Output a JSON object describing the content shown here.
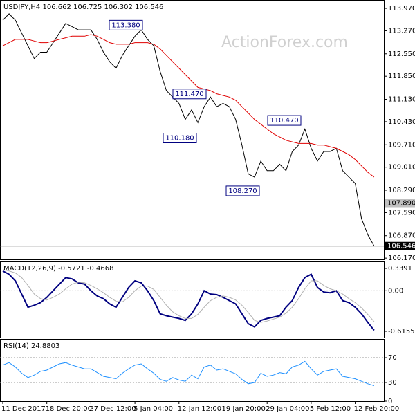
{
  "watermark": "ActionForex.com",
  "chart_data": [
    {
      "type": "line",
      "title": "USDJPY,H4  106.662 106.725 106.302 106.546",
      "categories": [
        "11 Dec 2017",
        null,
        null,
        null,
        null,
        null,
        null,
        "18 Dec 20:00",
        null,
        null,
        null,
        null,
        null,
        null,
        "27 Dec 12:00",
        null,
        null,
        null,
        null,
        null,
        null,
        "5 Jan 04:00",
        null,
        null,
        null,
        null,
        null,
        null,
        "12 Jan 12:00",
        null,
        null,
        null,
        null,
        null,
        null,
        "19 Jan 20:00",
        null,
        null,
        null,
        null,
        null,
        null,
        "29 Jan 04:00",
        null,
        null,
        null,
        null,
        null,
        null,
        "5 Feb 12:00",
        null,
        null,
        null,
        null,
        null,
        null,
        "12 Feb 20:00",
        null,
        null,
        null
      ],
      "series": [
        {
          "color": "#000000",
          "values": [
            113.6,
            113.8,
            113.6,
            113.2,
            112.8,
            112.4,
            112.6,
            112.6,
            112.9,
            113.2,
            113.5,
            113.4,
            113.3,
            113.3,
            113.3,
            113.0,
            112.6,
            112.3,
            112.1,
            112.5,
            112.8,
            113.1,
            113.3,
            113.0,
            112.8,
            112.0,
            111.4,
            111.2,
            111.0,
            110.5,
            110.8,
            110.4,
            110.9,
            111.2,
            110.9,
            111.0,
            110.9,
            110.5,
            109.7,
            108.8,
            108.7,
            109.2,
            108.9,
            108.9,
            109.1,
            108.9,
            109.5,
            109.7,
            110.2,
            109.6,
            109.2,
            109.5,
            109.5,
            109.6,
            108.9,
            108.7,
            108.5,
            107.4,
            106.9,
            106.55
          ]
        },
        {
          "color": "#e00000",
          "values": [
            112.8,
            112.9,
            113.0,
            113.0,
            113.0,
            112.95,
            112.9,
            112.9,
            112.95,
            113.0,
            113.05,
            113.1,
            113.1,
            113.1,
            113.15,
            113.1,
            113.0,
            112.9,
            112.85,
            112.85,
            112.85,
            112.9,
            112.9,
            112.9,
            112.85,
            112.7,
            112.5,
            112.3,
            112.1,
            111.9,
            111.7,
            111.5,
            111.45,
            111.4,
            111.3,
            111.25,
            111.2,
            111.1,
            110.9,
            110.7,
            110.5,
            110.35,
            110.2,
            110.05,
            109.95,
            109.85,
            109.8,
            109.75,
            109.75,
            109.75,
            109.7,
            109.7,
            109.65,
            109.6,
            109.5,
            109.4,
            109.25,
            109.05,
            108.85,
            108.7
          ]
        }
      ],
      "ylim": [
        106.13,
        114.23
      ],
      "yticks": [
        {
          "value": 113.97,
          "label": "113.970"
        },
        {
          "value": 113.27,
          "label": "113.270"
        },
        {
          "value": 112.55,
          "label": "112.550"
        },
        {
          "value": 111.85,
          "label": "111.850"
        },
        {
          "value": 111.13,
          "label": "111.130"
        },
        {
          "value": 110.43,
          "label": "110.430"
        },
        {
          "value": 109.71,
          "label": "109.710"
        },
        {
          "value": 109.01,
          "label": "109.010"
        },
        {
          "value": 108.29,
          "label": "108.290"
        },
        {
          "value": 107.59,
          "label": "107.590"
        },
        {
          "value": 106.87,
          "label": "106.870"
        },
        {
          "value": 106.17,
          "label": "106.170"
        }
      ],
      "levels": [
        {
          "value": 107.89,
          "label": "107.890",
          "style": "dashed"
        },
        {
          "value": 106.546,
          "label": "106.546",
          "style": "current"
        }
      ],
      "annotations": [
        {
          "value": 113.38,
          "label": "113.380"
        },
        {
          "value": 111.47,
          "label": "111.470"
        },
        {
          "value": 110.18,
          "label": "110.180"
        },
        {
          "value": 110.47,
          "label": "110.470"
        },
        {
          "value": 108.27,
          "label": "108.270"
        }
      ]
    },
    {
      "type": "line",
      "title": "MACD(12,26,9) -0.5721 -0.4668",
      "series": [
        {
          "color": "#000080",
          "values": [
            0.3,
            0.25,
            0.15,
            -0.05,
            -0.25,
            -0.22,
            -0.18,
            -0.1,
            0.0,
            0.1,
            0.2,
            0.18,
            0.12,
            0.1,
            0.0,
            -0.08,
            -0.12,
            -0.2,
            -0.25,
            -0.1,
            0.05,
            0.15,
            0.12,
            0.0,
            -0.15,
            -0.35,
            -0.38,
            -0.4,
            -0.42,
            -0.45,
            -0.35,
            -0.2,
            0.0,
            -0.05,
            -0.06,
            -0.1,
            -0.15,
            -0.2,
            -0.35,
            -0.5,
            -0.55,
            -0.45,
            -0.42,
            -0.4,
            -0.38,
            -0.25,
            -0.15,
            0.05,
            0.2,
            0.25,
            0.05,
            -0.02,
            -0.03,
            0.0,
            -0.15,
            -0.18,
            -0.25,
            -0.35,
            -0.48,
            -0.6
          ]
        },
        {
          "color": "#b0b0b0",
          "values": [
            0.32,
            0.3,
            0.27,
            0.2,
            0.08,
            -0.05,
            -0.12,
            -0.14,
            -0.1,
            -0.05,
            0.03,
            0.1,
            0.13,
            0.12,
            0.08,
            0.03,
            -0.03,
            -0.1,
            -0.16,
            -0.17,
            -0.1,
            0.0,
            0.07,
            0.07,
            0.02,
            -0.1,
            -0.22,
            -0.32,
            -0.38,
            -0.42,
            -0.42,
            -0.36,
            -0.25,
            -0.15,
            -0.1,
            -0.08,
            -0.1,
            -0.14,
            -0.22,
            -0.33,
            -0.45,
            -0.48,
            -0.46,
            -0.43,
            -0.4,
            -0.34,
            -0.25,
            -0.12,
            0.03,
            0.15,
            0.15,
            0.08,
            0.03,
            0.0,
            -0.05,
            -0.12,
            -0.18,
            -0.26,
            -0.36,
            -0.47
          ]
        }
      ],
      "ylim": [
        -0.71,
        0.444
      ],
      "yticks": [
        0.3391,
        {
          "value": 0,
          "label": "0.00"
        },
        -0.6155
      ],
      "guides": [
        0
      ]
    },
    {
      "type": "line",
      "title": "RSI(14) 24.8803",
      "series": [
        {
          "color": "#1e90ff",
          "values": [
            58,
            62,
            55,
            45,
            38,
            42,
            48,
            50,
            55,
            60,
            62,
            58,
            55,
            52,
            52,
            46,
            40,
            38,
            36,
            45,
            52,
            58,
            60,
            52,
            45,
            35,
            32,
            38,
            34,
            32,
            42,
            36,
            55,
            58,
            50,
            52,
            48,
            44,
            35,
            28,
            30,
            45,
            40,
            42,
            46,
            44,
            55,
            58,
            64,
            52,
            42,
            48,
            50,
            52,
            40,
            38,
            36,
            32,
            28,
            25
          ]
        }
      ],
      "ylim": [
        0,
        100
      ],
      "yticks": [
        70,
        30,
        0
      ],
      "guides": [
        30,
        70
      ]
    }
  ]
}
